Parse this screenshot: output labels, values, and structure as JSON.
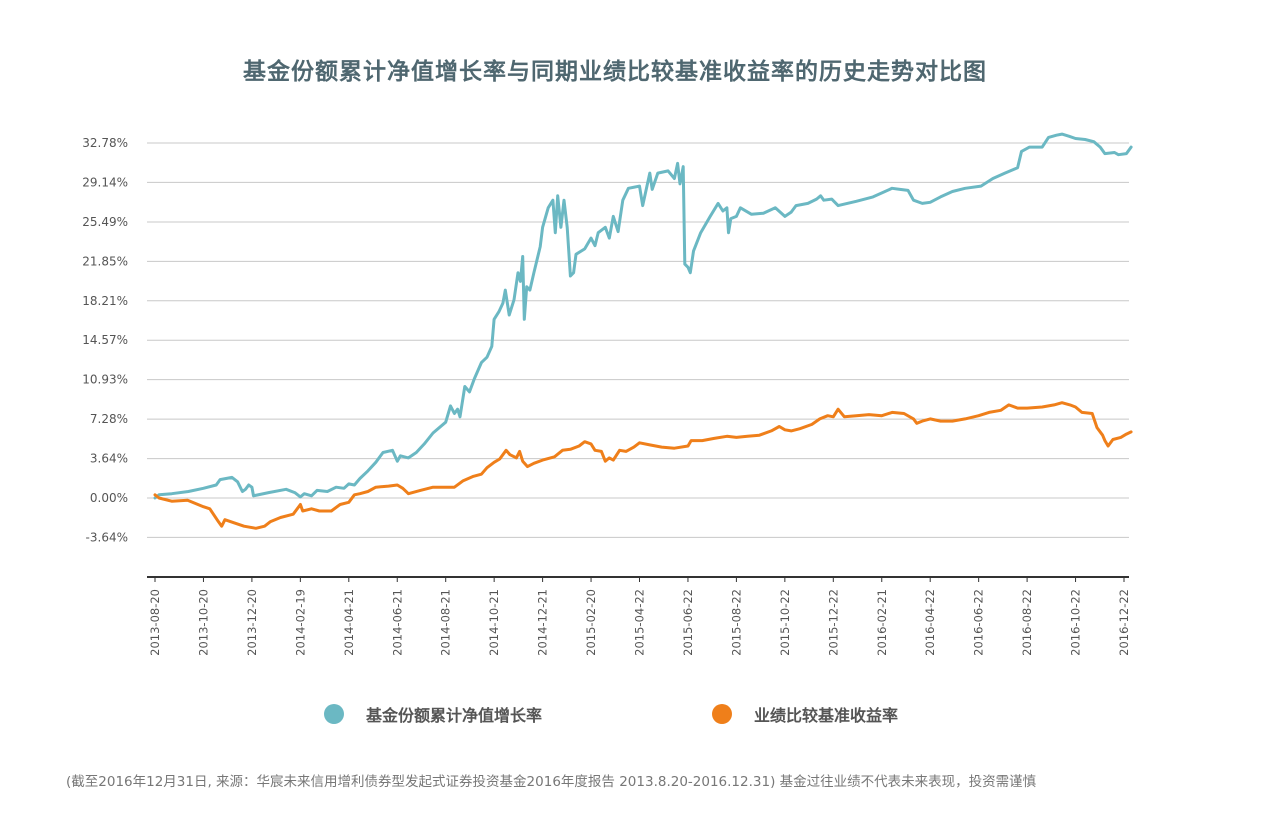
{
  "chart_data": {
    "type": "line",
    "title": "基金份额累计净值增长率与同期业绩比较基准收益率的历史走势对比图",
    "y_ticks": [
      "32.78%",
      "29.14%",
      "25.49%",
      "21.85%",
      "18.21%",
      "14.57%",
      "10.93%",
      "7.28%",
      "3.64%",
      "0.00%",
      "-3.64%"
    ],
    "y_tick_values": [
      32.78,
      29.14,
      25.49,
      21.85,
      18.21,
      14.57,
      10.93,
      7.28,
      3.64,
      0.0,
      -3.64
    ],
    "ylim": [
      -7.28,
      32.78
    ],
    "x_ticks": [
      "2013-08-20",
      "2013-10-20",
      "2013-12-20",
      "2014-02-19",
      "2014-04-21",
      "2014-06-21",
      "2014-08-21",
      "2014-10-21",
      "2014-12-21",
      "2015-02-20",
      "2015-04-22",
      "2015-06-22",
      "2015-08-22",
      "2015-10-22",
      "2015-12-22",
      "2016-02-21",
      "2016-04-22",
      "2016-06-22",
      "2016-08-22",
      "2016-10-22",
      "2016-12-22"
    ],
    "grid": true,
    "legend_position": "bottom",
    "series": [
      {
        "name": "基金份额累计净值增长率",
        "color": "#6bb8c3",
        "points": [
          [
            "2013-08-20",
            0.0
          ],
          [
            "2013-08-25",
            0.3
          ],
          [
            "2013-09-10",
            0.4
          ],
          [
            "2013-10-01",
            0.6
          ],
          [
            "2013-10-20",
            0.9
          ],
          [
            "2013-11-05",
            1.2
          ],
          [
            "2013-11-10",
            1.7
          ],
          [
            "2013-11-25",
            1.9
          ],
          [
            "2013-12-02",
            1.5
          ],
          [
            "2013-12-08",
            0.6
          ],
          [
            "2013-12-12",
            0.8
          ],
          [
            "2013-12-16",
            1.2
          ],
          [
            "2013-12-20",
            1.0
          ],
          [
            "2013-12-22",
            0.2
          ],
          [
            "2014-01-10",
            0.5
          ],
          [
            "2014-02-01",
            0.8
          ],
          [
            "2014-02-12",
            0.5
          ],
          [
            "2014-02-19",
            0.1
          ],
          [
            "2014-02-24",
            0.4
          ],
          [
            "2014-03-05",
            0.2
          ],
          [
            "2014-03-12",
            0.7
          ],
          [
            "2014-03-25",
            0.6
          ],
          [
            "2014-04-05",
            1.0
          ],
          [
            "2014-04-15",
            0.9
          ],
          [
            "2014-04-21",
            1.3
          ],
          [
            "2014-04-28",
            1.2
          ],
          [
            "2014-05-05",
            1.8
          ],
          [
            "2014-05-15",
            2.5
          ],
          [
            "2014-05-25",
            3.3
          ],
          [
            "2014-06-03",
            4.2
          ],
          [
            "2014-06-15",
            4.4
          ],
          [
            "2014-06-21",
            3.4
          ],
          [
            "2014-06-25",
            3.9
          ],
          [
            "2014-07-05",
            3.7
          ],
          [
            "2014-07-15",
            4.2
          ],
          [
            "2014-07-25",
            5.0
          ],
          [
            "2014-08-05",
            6.0
          ],
          [
            "2014-08-21",
            7.0
          ],
          [
            "2014-08-27",
            8.5
          ],
          [
            "2014-09-01",
            7.8
          ],
          [
            "2014-09-05",
            8.2
          ],
          [
            "2014-09-08",
            7.5
          ],
          [
            "2014-09-14",
            10.3
          ],
          [
            "2014-09-20",
            9.8
          ],
          [
            "2014-09-26",
            11.0
          ],
          [
            "2014-10-05",
            12.5
          ],
          [
            "2014-10-12",
            13.0
          ],
          [
            "2014-10-18",
            14.0
          ],
          [
            "2014-10-21",
            16.5
          ],
          [
            "2014-10-27",
            17.2
          ],
          [
            "2014-11-01",
            18.0
          ],
          [
            "2014-11-04",
            19.2
          ],
          [
            "2014-11-09",
            16.9
          ],
          [
            "2014-11-15",
            18.3
          ],
          [
            "2014-11-20",
            20.8
          ],
          [
            "2014-11-23",
            20.0
          ],
          [
            "2014-11-26",
            22.3
          ],
          [
            "2014-11-28",
            16.5
          ],
          [
            "2014-12-01",
            19.5
          ],
          [
            "2014-12-05",
            19.2
          ],
          [
            "2014-12-10",
            20.8
          ],
          [
            "2014-12-18",
            23.2
          ],
          [
            "2014-12-21",
            25.0
          ],
          [
            "2014-12-28",
            26.8
          ],
          [
            "2015-01-03",
            27.5
          ],
          [
            "2015-01-06",
            24.5
          ],
          [
            "2015-01-09",
            27.9
          ],
          [
            "2015-01-13",
            25.0
          ],
          [
            "2015-01-17",
            27.5
          ],
          [
            "2015-01-21",
            25.0
          ],
          [
            "2015-01-25",
            20.5
          ],
          [
            "2015-01-29",
            20.8
          ],
          [
            "2015-02-01",
            22.5
          ],
          [
            "2015-02-12",
            23.0
          ],
          [
            "2015-02-20",
            24.0
          ],
          [
            "2015-02-25",
            23.3
          ],
          [
            "2015-03-01",
            24.5
          ],
          [
            "2015-03-10",
            25.0
          ],
          [
            "2015-03-15",
            24.0
          ],
          [
            "2015-03-20",
            26.0
          ],
          [
            "2015-03-26",
            24.6
          ],
          [
            "2015-04-01",
            27.5
          ],
          [
            "2015-04-08",
            28.6
          ],
          [
            "2015-04-22",
            28.8
          ],
          [
            "2015-04-26",
            27.0
          ],
          [
            "2015-05-05",
            30.0
          ],
          [
            "2015-05-08",
            28.5
          ],
          [
            "2015-05-15",
            30.0
          ],
          [
            "2015-05-28",
            30.2
          ],
          [
            "2015-06-05",
            29.5
          ],
          [
            "2015-06-09",
            30.9
          ],
          [
            "2015-06-12",
            29.0
          ],
          [
            "2015-06-16",
            30.6
          ],
          [
            "2015-06-18",
            21.6
          ],
          [
            "2015-06-22",
            21.3
          ],
          [
            "2015-06-25",
            20.8
          ],
          [
            "2015-06-29",
            22.8
          ],
          [
            "2015-07-08",
            24.5
          ],
          [
            "2015-07-20",
            26.0
          ],
          [
            "2015-07-30",
            27.2
          ],
          [
            "2015-08-05",
            26.5
          ],
          [
            "2015-08-10",
            26.8
          ],
          [
            "2015-08-12",
            24.5
          ],
          [
            "2015-08-15",
            25.8
          ],
          [
            "2015-08-22",
            26.0
          ],
          [
            "2015-08-27",
            26.8
          ],
          [
            "2015-09-10",
            26.2
          ],
          [
            "2015-09-25",
            26.3
          ],
          [
            "2015-10-10",
            26.8
          ],
          [
            "2015-10-22",
            26.0
          ],
          [
            "2015-10-30",
            26.4
          ],
          [
            "2015-11-05",
            27.0
          ],
          [
            "2015-11-20",
            27.2
          ],
          [
            "2015-12-01",
            27.6
          ],
          [
            "2015-12-06",
            27.9
          ],
          [
            "2015-12-10",
            27.5
          ],
          [
            "2015-12-20",
            27.6
          ],
          [
            "2015-12-28",
            27.0
          ],
          [
            "2016-01-20",
            27.4
          ],
          [
            "2016-02-10",
            27.8
          ],
          [
            "2016-03-05",
            28.6
          ],
          [
            "2016-03-15",
            28.5
          ],
          [
            "2016-03-25",
            28.4
          ],
          [
            "2016-04-01",
            27.5
          ],
          [
            "2016-04-12",
            27.2
          ],
          [
            "2016-04-22",
            27.3
          ],
          [
            "2016-05-05",
            27.8
          ],
          [
            "2016-05-20",
            28.3
          ],
          [
            "2016-06-05",
            28.6
          ],
          [
            "2016-06-25",
            28.8
          ],
          [
            "2016-07-10",
            29.5
          ],
          [
            "2016-07-25",
            30.0
          ],
          [
            "2016-08-10",
            30.5
          ],
          [
            "2016-08-15",
            32.0
          ],
          [
            "2016-08-25",
            32.4
          ],
          [
            "2016-09-10",
            32.4
          ],
          [
            "2016-09-18",
            33.3
          ],
          [
            "2016-09-28",
            33.5
          ],
          [
            "2016-10-05",
            33.6
          ],
          [
            "2016-10-14",
            33.4
          ],
          [
            "2016-10-22",
            33.2
          ],
          [
            "2016-11-03",
            33.1
          ],
          [
            "2016-11-14",
            32.9
          ],
          [
            "2016-11-22",
            32.4
          ],
          [
            "2016-11-28",
            31.8
          ],
          [
            "2016-12-10",
            31.9
          ],
          [
            "2016-12-15",
            31.7
          ],
          [
            "2016-12-25",
            31.8
          ],
          [
            "2016-12-31",
            32.4
          ]
        ]
      },
      {
        "name": "业绩比较基准收益率",
        "color": "#ef7f1a",
        "points": [
          [
            "2013-08-20",
            0.3
          ],
          [
            "2013-08-25",
            0.0
          ],
          [
            "2013-09-10",
            -0.3
          ],
          [
            "2013-09-30",
            -0.2
          ],
          [
            "2013-10-20",
            -0.8
          ],
          [
            "2013-10-28",
            -1.0
          ],
          [
            "2013-11-08",
            -2.2
          ],
          [
            "2013-11-12",
            -2.6
          ],
          [
            "2013-11-16",
            -2.0
          ],
          [
            "2013-11-28",
            -2.3
          ],
          [
            "2013-12-10",
            -2.6
          ],
          [
            "2013-12-25",
            -2.8
          ],
          [
            "2014-01-05",
            -2.6
          ],
          [
            "2014-01-12",
            -2.2
          ],
          [
            "2014-01-25",
            -1.8
          ],
          [
            "2014-02-10",
            -1.5
          ],
          [
            "2014-02-19",
            -0.6
          ],
          [
            "2014-02-22",
            -1.2
          ],
          [
            "2014-03-05",
            -1.0
          ],
          [
            "2014-03-15",
            -1.2
          ],
          [
            "2014-03-30",
            -1.2
          ],
          [
            "2014-04-10",
            -0.6
          ],
          [
            "2014-04-21",
            -0.4
          ],
          [
            "2014-04-28",
            0.3
          ],
          [
            "2014-05-05",
            0.4
          ],
          [
            "2014-05-15",
            0.6
          ],
          [
            "2014-05-25",
            1.0
          ],
          [
            "2014-06-10",
            1.1
          ],
          [
            "2014-06-21",
            1.2
          ],
          [
            "2014-06-28",
            0.9
          ],
          [
            "2014-07-05",
            0.4
          ],
          [
            "2014-07-20",
            0.7
          ],
          [
            "2014-08-05",
            1.0
          ],
          [
            "2014-08-21",
            1.0
          ],
          [
            "2014-09-01",
            1.0
          ],
          [
            "2014-09-12",
            1.6
          ],
          [
            "2014-09-25",
            2.0
          ],
          [
            "2014-10-05",
            2.2
          ],
          [
            "2014-10-12",
            2.8
          ],
          [
            "2014-10-21",
            3.3
          ],
          [
            "2014-10-28",
            3.6
          ],
          [
            "2014-11-05",
            4.4
          ],
          [
            "2014-11-10",
            4.0
          ],
          [
            "2014-11-18",
            3.7
          ],
          [
            "2014-11-22",
            4.3
          ],
          [
            "2014-11-26",
            3.4
          ],
          [
            "2014-12-02",
            2.9
          ],
          [
            "2014-12-10",
            3.2
          ],
          [
            "2014-12-21",
            3.5
          ],
          [
            "2015-01-05",
            3.8
          ],
          [
            "2015-01-15",
            4.4
          ],
          [
            "2015-01-25",
            4.5
          ],
          [
            "2015-02-05",
            4.8
          ],
          [
            "2015-02-12",
            5.2
          ],
          [
            "2015-02-20",
            5.0
          ],
          [
            "2015-02-25",
            4.4
          ],
          [
            "2015-03-05",
            4.3
          ],
          [
            "2015-03-10",
            3.4
          ],
          [
            "2015-03-15",
            3.7
          ],
          [
            "2015-03-20",
            3.5
          ],
          [
            "2015-03-28",
            4.4
          ],
          [
            "2015-04-05",
            4.3
          ],
          [
            "2015-04-15",
            4.7
          ],
          [
            "2015-04-22",
            5.1
          ],
          [
            "2015-05-05",
            4.9
          ],
          [
            "2015-05-20",
            4.7
          ],
          [
            "2015-06-05",
            4.6
          ],
          [
            "2015-06-22",
            4.8
          ],
          [
            "2015-06-26",
            5.3
          ],
          [
            "2015-07-10",
            5.3
          ],
          [
            "2015-07-25",
            5.5
          ],
          [
            "2015-08-10",
            5.7
          ],
          [
            "2015-08-22",
            5.6
          ],
          [
            "2015-09-05",
            5.7
          ],
          [
            "2015-09-20",
            5.8
          ],
          [
            "2015-10-05",
            6.2
          ],
          [
            "2015-10-15",
            6.6
          ],
          [
            "2015-10-22",
            6.3
          ],
          [
            "2015-10-30",
            6.2
          ],
          [
            "2015-11-10",
            6.4
          ],
          [
            "2015-11-25",
            6.8
          ],
          [
            "2015-12-05",
            7.3
          ],
          [
            "2015-12-15",
            7.6
          ],
          [
            "2015-12-22",
            7.5
          ],
          [
            "2015-12-28",
            8.2
          ],
          [
            "2016-01-05",
            7.5
          ],
          [
            "2016-01-20",
            7.6
          ],
          [
            "2016-02-05",
            7.7
          ],
          [
            "2016-02-21",
            7.6
          ],
          [
            "2016-03-05",
            7.9
          ],
          [
            "2016-03-20",
            7.8
          ],
          [
            "2016-04-01",
            7.3
          ],
          [
            "2016-04-05",
            6.9
          ],
          [
            "2016-04-12",
            7.1
          ],
          [
            "2016-04-22",
            7.3
          ],
          [
            "2016-05-05",
            7.1
          ],
          [
            "2016-05-20",
            7.1
          ],
          [
            "2016-06-05",
            7.3
          ],
          [
            "2016-06-22",
            7.6
          ],
          [
            "2016-07-05",
            7.9
          ],
          [
            "2016-07-20",
            8.1
          ],
          [
            "2016-07-30",
            8.6
          ],
          [
            "2016-08-10",
            8.3
          ],
          [
            "2016-08-22",
            8.3
          ],
          [
            "2016-09-10",
            8.4
          ],
          [
            "2016-09-25",
            8.6
          ],
          [
            "2016-10-05",
            8.8
          ],
          [
            "2016-10-15",
            8.6
          ],
          [
            "2016-10-22",
            8.4
          ],
          [
            "2016-10-30",
            7.9
          ],
          [
            "2016-11-12",
            7.8
          ],
          [
            "2016-11-18",
            6.5
          ],
          [
            "2016-11-25",
            5.8
          ],
          [
            "2016-11-28",
            5.3
          ],
          [
            "2016-12-02",
            4.8
          ],
          [
            "2016-12-08",
            5.4
          ],
          [
            "2016-12-18",
            5.6
          ],
          [
            "2016-12-25",
            5.9
          ],
          [
            "2016-12-31",
            6.1
          ]
        ]
      }
    ]
  },
  "legend": {
    "nav_label": "基金份额累计净值增长率",
    "bench_label": "业绩比较基准收益率"
  },
  "footnote": "(截至2016年12月31日, 来源：华宸未来信用增利债券型发起式证券投资基金2016年度报告 2013.8.20-2016.12.31)  基金过往业绩不代表未来表现，投资需谨慎"
}
